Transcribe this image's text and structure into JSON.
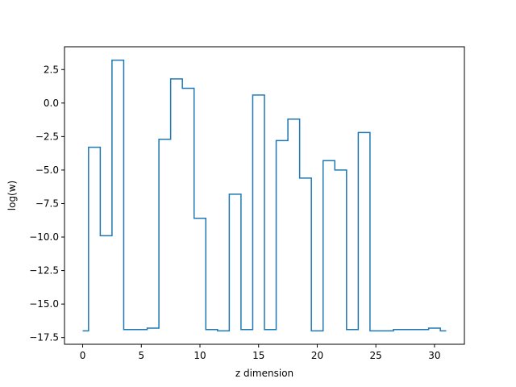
{
  "chart_data": {
    "type": "line",
    "drawstyle": "steps-mid",
    "title": "",
    "xlabel": "z dimension",
    "ylabel": "log(w)",
    "xlim": [
      -1.55,
      32.55
    ],
    "ylim": [
      -18.0,
      4.2
    ],
    "grid": false,
    "x_ticks": [
      0,
      5,
      10,
      15,
      20,
      25,
      30
    ],
    "y_ticks": [
      2.5,
      0.0,
      -2.5,
      -5.0,
      -7.5,
      -10.0,
      -12.5,
      -15.0,
      -17.5
    ],
    "y_tick_labels": [
      "2.5",
      "0.0",
      "−2.5",
      "−5.0",
      "−7.5",
      "−10.0",
      "−12.5",
      "−15.0",
      "−17.5"
    ],
    "series": [
      {
        "color": "#1f77b4",
        "x": [
          0,
          1,
          2,
          3,
          4,
          5,
          6,
          7,
          8,
          9,
          10,
          11,
          12,
          13,
          14,
          15,
          16,
          17,
          18,
          19,
          20,
          21,
          22,
          23,
          24,
          25,
          26,
          27,
          28,
          29,
          30,
          31
        ],
        "y": [
          -17.0,
          -3.3,
          -9.9,
          3.2,
          -16.9,
          -16.9,
          -16.8,
          -2.7,
          1.8,
          1.1,
          -8.6,
          -16.9,
          -17.0,
          -6.8,
          -16.9,
          0.6,
          -16.9,
          -2.8,
          -1.2,
          -5.6,
          -17.0,
          -4.3,
          -5.0,
          -16.9,
          -2.2,
          -17.0,
          -17.0,
          -16.9,
          -16.9,
          -16.9,
          -16.8,
          -17.0
        ]
      }
    ]
  }
}
